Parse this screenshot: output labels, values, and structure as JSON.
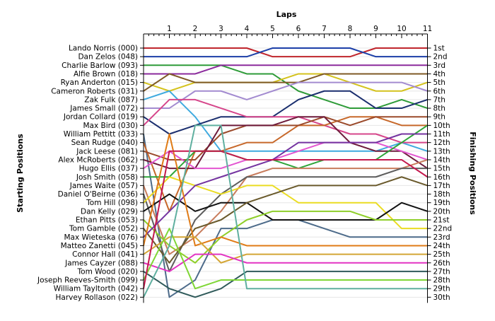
{
  "chart_data": {
    "type": "line",
    "top_title": "Laps",
    "left_title": "Starting Positions",
    "right_title": "Finishing Positions",
    "laps": [
      1,
      2,
      3,
      4,
      5,
      6,
      7,
      8,
      9,
      10,
      11
    ],
    "y_range": [
      1,
      30
    ],
    "grid": true,
    "finish_labels": [
      "1st",
      "2nd",
      "3rd",
      "4th",
      "5th",
      "6th",
      "7th",
      "8th",
      "9th",
      "10th",
      "11th",
      "12th",
      "13th",
      "14th",
      "15th",
      "16th",
      "17th",
      "18th",
      "19th",
      "20th",
      "21st",
      "22nd",
      "23rd",
      "24th",
      "25th",
      "26th",
      "27th",
      "28th",
      "29th",
      "30th"
    ],
    "series": [
      {
        "name": "Lando Norris (000)",
        "color": "#c0262d",
        "positions": [
          1,
          1,
          1,
          1,
          1,
          2,
          2,
          2,
          2,
          1,
          1,
          1
        ]
      },
      {
        "name": "Dan Zelos (048)",
        "color": "#1c3fa8",
        "positions": [
          2,
          2,
          2,
          2,
          2,
          1,
          1,
          1,
          1,
          2,
          2,
          2
        ]
      },
      {
        "name": "Charlie Barlow (093)",
        "color": "#2e9b38",
        "positions": [
          3,
          3,
          3,
          3,
          4,
          4,
          6,
          7,
          8,
          8,
          7,
          8
        ]
      },
      {
        "name": "Alfie Brown (018)",
        "color": "#8b2a9c",
        "positions": [
          4,
          4,
          4,
          3,
          3,
          3,
          3,
          3,
          3,
          3,
          3,
          3
        ]
      },
      {
        "name": "Ryan Anderton (015)",
        "color": "#d4c21d",
        "positions": [
          5,
          6,
          5,
          5,
          5,
          5,
          4,
          4,
          5,
          6,
          6,
          5
        ]
      },
      {
        "name": "Cameron Roberts (031)",
        "color": "#7f5a26",
        "positions": [
          6,
          4,
          5,
          5,
          5,
          5,
          5,
          4,
          4,
          4,
          4,
          4
        ]
      },
      {
        "name": "Zak Fulk (087)",
        "color": "#3faadf",
        "positions": [
          7,
          6,
          9,
          13,
          13,
          13,
          13,
          13,
          13,
          13,
          12,
          13
        ]
      },
      {
        "name": "James Small (072)",
        "color": "#a38bd0",
        "positions": [
          8,
          8,
          6,
          6,
          7,
          6,
          5,
          5,
          5,
          5,
          5,
          6
        ]
      },
      {
        "name": "Jordan Collard (019)",
        "color": "#1a2e6e",
        "positions": [
          9,
          11,
          10,
          9,
          9,
          9,
          7,
          6,
          6,
          8,
          8,
          7
        ]
      },
      {
        "name": "Max Bird (030)",
        "color": "#d6468b",
        "positions": [
          10,
          7,
          7,
          8,
          9,
          9,
          9,
          10,
          11,
          11,
          12,
          12
        ]
      },
      {
        "name": "William Pettitt (033)",
        "color": "#4d6b8a",
        "positions": [
          11,
          30,
          28,
          22,
          22,
          21,
          21,
          22,
          23,
          23,
          23,
          23
        ]
      },
      {
        "name": "Sean Rudge (040)",
        "color": "#c7682a",
        "positions": [
          12,
          20,
          13,
          13,
          12,
          12,
          10,
          10,
          9,
          9,
          10,
          10
        ]
      },
      {
        "name": "Jack Leese (081)",
        "color": "#9b4a2b",
        "positions": [
          13,
          14,
          14,
          11,
          10,
          10,
          10,
          9,
          10,
          9,
          9,
          9
        ]
      },
      {
        "name": "Alex McRoberts (062)",
        "color": "#6e1b3b",
        "positions": [
          14,
          15,
          15,
          10,
          10,
          10,
          9,
          9,
          12,
          13,
          13,
          15
        ]
      },
      {
        "name": "Hugo Ellis (037)",
        "color": "#e356d1",
        "positions": [
          15,
          13,
          15,
          15,
          14,
          14,
          13,
          12,
          12,
          12,
          13,
          14
        ]
      },
      {
        "name": "Josh Smith (058)",
        "color": "#2fa53a",
        "positions": [
          16,
          16,
          13,
          13,
          14,
          14,
          15,
          14,
          14,
          14,
          12,
          10
        ]
      },
      {
        "name": "James Waite (057)",
        "color": "#c87c5c",
        "positions": [
          17,
          25,
          23,
          20,
          16,
          15,
          15,
          15,
          15,
          15,
          15,
          14
        ]
      },
      {
        "name": "Daniel O'Beirne (036)",
        "color": "#5d5d5d",
        "positions": [
          18,
          27,
          21,
          18,
          16,
          16,
          16,
          16,
          16,
          16,
          15,
          15
        ]
      },
      {
        "name": "Tom Hill (098)",
        "color": "#eadc23",
        "positions": [
          19,
          16,
          17,
          18,
          17,
          17,
          19,
          19,
          19,
          19,
          22,
          22
        ]
      },
      {
        "name": "Dan Kelly (029)",
        "color": "#111111",
        "positions": [
          20,
          18,
          20,
          19,
          19,
          21,
          21,
          21,
          21,
          21,
          19,
          20
        ]
      },
      {
        "name": "Ethan Pitts (053)",
        "color": "#8fcf2a",
        "positions": [
          21,
          24,
          26,
          23,
          21,
          20,
          20,
          20,
          20,
          21,
          21,
          21
        ]
      },
      {
        "name": "Tom Gamble (052)",
        "color": "#6a5a2c",
        "positions": [
          22,
          26,
          22,
          21,
          19,
          18,
          17,
          17,
          17,
          17,
          16,
          17
        ]
      },
      {
        "name": "Max Wieteska (076)",
        "color": "#7433a0",
        "positions": [
          23,
          20,
          17,
          16,
          15,
          14,
          12,
          12,
          12,
          12,
          11,
          11
        ]
      },
      {
        "name": "Matteo Zanetti (045)",
        "color": "#e07b16",
        "positions": [
          24,
          11,
          24,
          23,
          24,
          24,
          24,
          24,
          24,
          24,
          24,
          24
        ]
      },
      {
        "name": "Connor Hall (041)",
        "color": "#d4a636",
        "positions": [
          25,
          23,
          23,
          26,
          25,
          25,
          25,
          25,
          25,
          25,
          25,
          25
        ]
      },
      {
        "name": "James Cayzer (088)",
        "color": "#e334c3",
        "positions": [
          26,
          27,
          25,
          25,
          26,
          26,
          26,
          26,
          26,
          26,
          26,
          26
        ]
      },
      {
        "name": "Tom Wood (020)",
        "color": "#2f5a5a",
        "positions": [
          27,
          29,
          30,
          29,
          27,
          27,
          27,
          27,
          27,
          27,
          27,
          27
        ]
      },
      {
        "name": "Joseph Reeves-Smith (099)",
        "color": "#7fd636",
        "positions": [
          28,
          22,
          29,
          28,
          28,
          28,
          28,
          28,
          28,
          28,
          28,
          28
        ]
      },
      {
        "name": "William Tayltorth (042)",
        "color": "#c4184d",
        "positions": [
          29,
          13,
          13,
          13,
          14,
          14,
          14,
          14,
          14,
          14,
          14,
          16
        ]
      },
      {
        "name": "Harvey Rollason (022)",
        "color": "#5faf9f",
        "positions": [
          30,
          24,
          10,
          10,
          29,
          29,
          29,
          29,
          29,
          29,
          29,
          29
        ]
      }
    ]
  }
}
